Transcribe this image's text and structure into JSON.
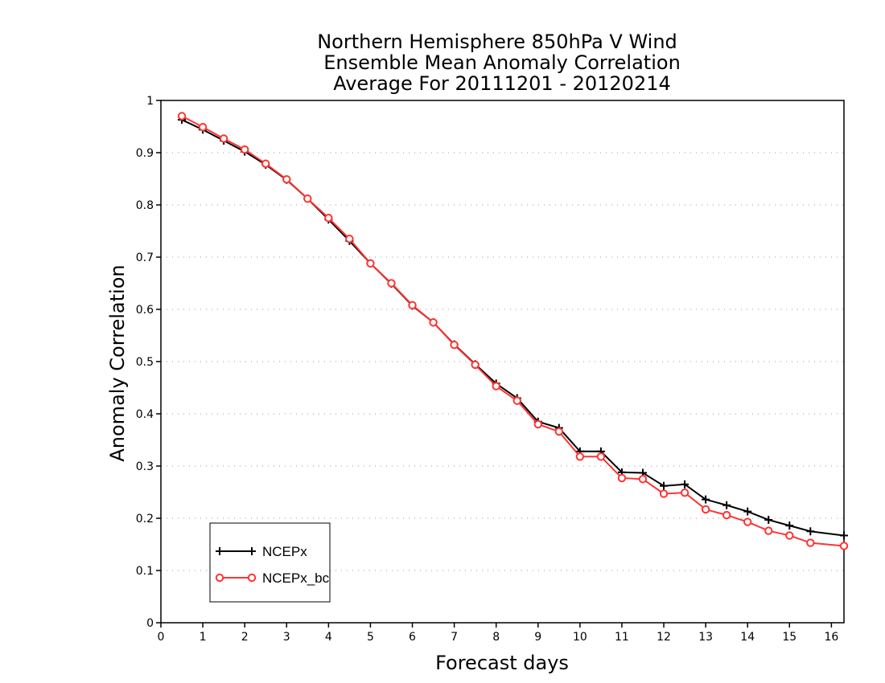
{
  "chart_data": {
    "type": "line",
    "title_lines": [
      "Northern Hemisphere 850hPa V Wind",
      "Ensemble Mean Anomaly Correlation",
      "Average For 20111201 - 20120214"
    ],
    "xlabel": "Forecast days",
    "ylabel": "Anomaly Correlation",
    "xlim": [
      0,
      16.3
    ],
    "ylim": [
      0,
      1
    ],
    "x_ticks": [
      0,
      1,
      2,
      3,
      4,
      5,
      6,
      7,
      8,
      9,
      10,
      11,
      12,
      13,
      14,
      15,
      16
    ],
    "x_tick_labels": [
      "0",
      "1",
      "2",
      "3",
      "4",
      "5",
      "6",
      "7",
      "8",
      "9",
      "10",
      "11",
      "12",
      "13",
      "14",
      "15",
      "16"
    ],
    "y_ticks": [
      0,
      0.1,
      0.2,
      0.3,
      0.4,
      0.5,
      0.6,
      0.7,
      0.8,
      0.9,
      1
    ],
    "y_tick_labels": [
      "0",
      "0.1",
      "0.2",
      "0.3",
      "0.4",
      "0.5",
      "0.6",
      "0.7",
      "0.8",
      "0.9",
      "1"
    ],
    "grid": "horizontal dotted",
    "legend_position": "bottom-left",
    "x": [
      0.5,
      1,
      1.5,
      2,
      2.5,
      3,
      3.5,
      4,
      4.5,
      5,
      5.5,
      6,
      6.5,
      7,
      7.5,
      8,
      8.5,
      9,
      9.5,
      10,
      10.5,
      11,
      11.5,
      12,
      12.5,
      13,
      13.5,
      14,
      14.5,
      15,
      15.5,
      16.3
    ],
    "series": [
      {
        "name": "NCEPx",
        "color": "#000000",
        "marker": "plus",
        "values": [
          0.963,
          0.944,
          0.923,
          0.902,
          0.877,
          0.848,
          0.812,
          0.772,
          0.731,
          0.688,
          0.649,
          0.607,
          0.575,
          0.533,
          0.495,
          0.458,
          0.43,
          0.385,
          0.373,
          0.328,
          0.328,
          0.288,
          0.287,
          0.262,
          0.265,
          0.236,
          0.225,
          0.213,
          0.197,
          0.186,
          0.175,
          0.167
        ]
      },
      {
        "name": "NCEPx_bc",
        "color": "#ff3333",
        "marker": "circle",
        "values": [
          0.97,
          0.949,
          0.927,
          0.906,
          0.879,
          0.849,
          0.812,
          0.775,
          0.735,
          0.688,
          0.65,
          0.608,
          0.575,
          0.532,
          0.494,
          0.453,
          0.425,
          0.38,
          0.366,
          0.318,
          0.318,
          0.277,
          0.275,
          0.247,
          0.249,
          0.217,
          0.206,
          0.193,
          0.176,
          0.167,
          0.153,
          0.147
        ]
      }
    ]
  }
}
